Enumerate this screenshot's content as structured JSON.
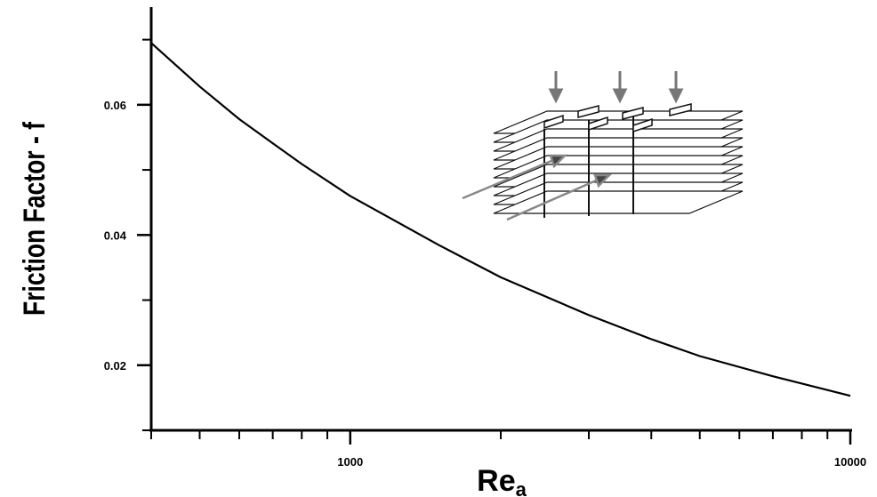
{
  "chart_data": {
    "type": "line",
    "xlabel": "Re",
    "xlabel_subscript": "a",
    "ylabel": "Friction Factor - f",
    "x_scale": "log",
    "xlim": [
      400,
      10000
    ],
    "ylim": [
      0.01,
      0.075
    ],
    "x_tick_labels": [
      {
        "value": 1000,
        "label": "1000"
      },
      {
        "value": 10000,
        "label": "10000"
      }
    ],
    "y_tick_labels": [
      {
        "value": 0.02,
        "label": "0.02"
      },
      {
        "value": 0.04,
        "label": "0.04"
      },
      {
        "value": 0.06,
        "label": "0.06"
      }
    ],
    "y_minor_ticks": [
      0.01,
      0.03,
      0.05,
      0.07
    ],
    "series": [
      {
        "color": "#000000",
        "x": [
          400,
          500,
          600,
          700,
          800,
          1000,
          1500,
          2000,
          3000,
          4000,
          5000,
          7000,
          10000
        ],
        "y": [
          0.0695,
          0.0628,
          0.0578,
          0.0541,
          0.0509,
          0.046,
          0.0385,
          0.0335,
          0.0277,
          0.024,
          0.0214,
          0.0183,
          0.0153
        ]
      }
    ],
    "grid": false,
    "legend": "none",
    "inset": "heat-exchanger-fin-diagram"
  }
}
